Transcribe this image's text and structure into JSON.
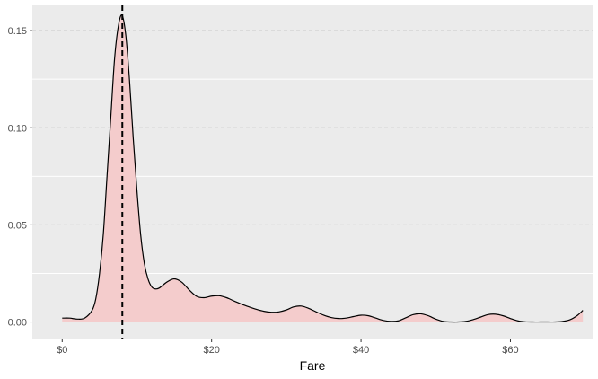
{
  "chart_data": {
    "type": "area",
    "title": "",
    "xlabel": "Fare",
    "ylabel": "",
    "xlim": [
      -4,
      71
    ],
    "ylim": [
      -0.009,
      0.163
    ],
    "x_ticks": [
      {
        "value": 0,
        "label": "$0"
      },
      {
        "value": 20,
        "label": "$20"
      },
      {
        "value": 40,
        "label": "$40"
      },
      {
        "value": 60,
        "label": "$60"
      }
    ],
    "y_ticks": [
      {
        "value": 0.0,
        "label": "0.00"
      },
      {
        "value": 0.05,
        "label": "0.05"
      },
      {
        "value": 0.1,
        "label": "0.10"
      },
      {
        "value": 0.15,
        "label": "0.15"
      }
    ],
    "y_minor_ticks": [
      0.025,
      0.075,
      0.125
    ],
    "grid": true,
    "grid_major_y_style": "dashed",
    "vline": {
      "x": 8.05,
      "style": "dashed",
      "color": "#000000"
    },
    "fill_color": "#f4cccc",
    "line_color": "#000000",
    "panel_color": "#ebebeb",
    "density": {
      "x": [
        0,
        1,
        2,
        3,
        4,
        4.5,
        5,
        5.5,
        6,
        6.5,
        7,
        7.5,
        8,
        8.5,
        9,
        9.5,
        10,
        10.5,
        11,
        11.5,
        12,
        12.5,
        13,
        14,
        15,
        16,
        17,
        18,
        19,
        20,
        21,
        22,
        23,
        24,
        25,
        26,
        27,
        28,
        29,
        30,
        31,
        32,
        33,
        34,
        35,
        36,
        37,
        38,
        39,
        40,
        41,
        42,
        43,
        44,
        45,
        46,
        47,
        48,
        49,
        50,
        51,
        52,
        53,
        54,
        55,
        56,
        57,
        58,
        59,
        60,
        61,
        62,
        63,
        64,
        65,
        66,
        67,
        68,
        69,
        69.7
      ],
      "y": [
        0.002,
        0.002,
        0.0015,
        0.002,
        0.006,
        0.012,
        0.025,
        0.045,
        0.075,
        0.105,
        0.135,
        0.152,
        0.158,
        0.148,
        0.125,
        0.095,
        0.068,
        0.045,
        0.03,
        0.022,
        0.018,
        0.017,
        0.0175,
        0.0205,
        0.0222,
        0.0205,
        0.0165,
        0.0132,
        0.0125,
        0.0133,
        0.0135,
        0.0125,
        0.0108,
        0.0092,
        0.0078,
        0.0065,
        0.0055,
        0.005,
        0.0052,
        0.0062,
        0.0078,
        0.0082,
        0.007,
        0.0052,
        0.0035,
        0.0023,
        0.0018,
        0.002,
        0.0028,
        0.0035,
        0.0032,
        0.002,
        0.0008,
        0.0003,
        0.0006,
        0.0022,
        0.0038,
        0.0042,
        0.0032,
        0.0015,
        0.0003,
        0.0,
        0.0,
        0.0003,
        0.0012,
        0.0025,
        0.0038,
        0.004,
        0.0032,
        0.0018,
        0.0006,
        0.0001,
        0.0,
        0.0,
        0.0,
        0.0,
        0.0003,
        0.0012,
        0.0035,
        0.006
      ]
    }
  }
}
